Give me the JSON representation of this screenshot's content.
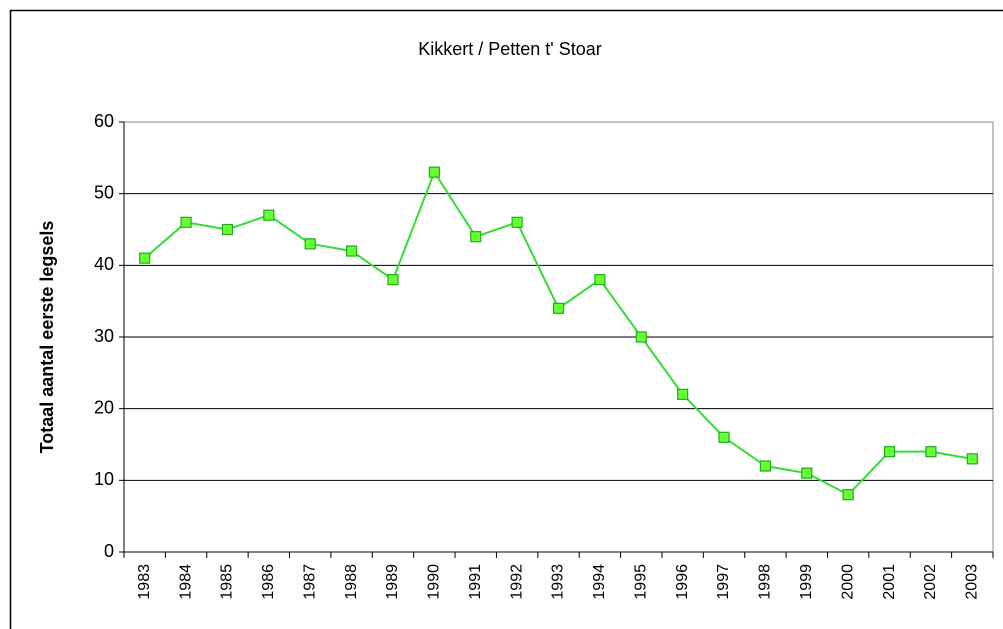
{
  "chart_data": {
    "type": "line",
    "title": "Kikkert / Petten t' Stoar",
    "y_label": "Totaal aantal eerste legsels",
    "categories": [
      "1983",
      "1984",
      "1985",
      "1986",
      "1987",
      "1988",
      "1989",
      "1990",
      "1991",
      "1992",
      "1993",
      "1994",
      "1995",
      "1996",
      "1997",
      "1998",
      "1999",
      "2000",
      "2001",
      "2002",
      "2003"
    ],
    "values": [
      41,
      46,
      45,
      47,
      43,
      42,
      38,
      53,
      44,
      46,
      34,
      38,
      30,
      22,
      16,
      12,
      11,
      8,
      14,
      14,
      13
    ],
    "color": "#33dd33",
    "ylim": [
      0,
      60
    ],
    "yticks": [
      0,
      10,
      20,
      30,
      40,
      50,
      60
    ],
    "grid": true
  }
}
